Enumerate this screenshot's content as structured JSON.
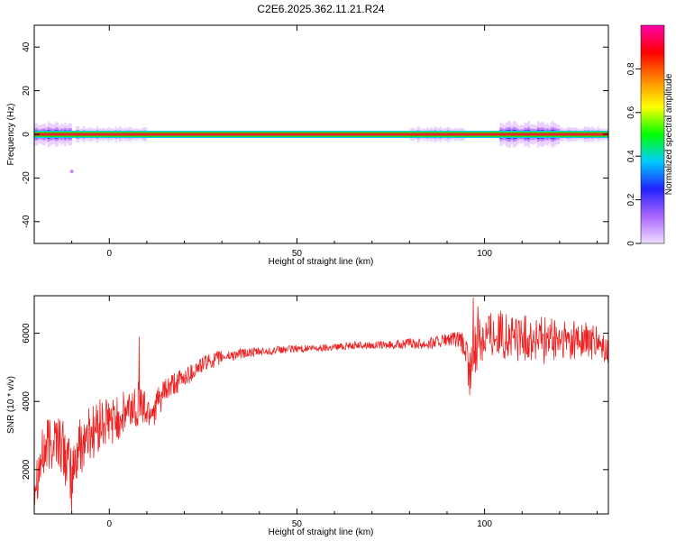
{
  "title": "C2E6.2025.362.11.21.R24",
  "colors": {
    "snr_line": "#ee2222",
    "spectrum_band_core": "#ee2222",
    "spectrum_band_green": "#22dd22",
    "spectrum_halo": "#cc88ff",
    "axes": "#000000"
  },
  "chart_data": [
    {
      "type": "heatmap",
      "xlabel": "Height of straight line (km)",
      "ylabel": "Frequency (Hz)",
      "xlim": [
        -20,
        133
      ],
      "ylim": [
        -50,
        50
      ],
      "xticks": [
        0,
        50,
        100
      ],
      "yticks": [
        -40,
        -20,
        0,
        20,
        40
      ],
      "ridge": {
        "frequency_hz": 0,
        "x_range": [
          -20,
          133
        ],
        "core_amplitude": 0.95
      },
      "spread_intervals": [
        {
          "x_range": [
            -20,
            -10
          ],
          "halfwidth_hz": 5
        },
        {
          "x_range": [
            -9,
            10
          ],
          "halfwidth_hz": 3
        },
        {
          "x_range": [
            80,
            95
          ],
          "halfwidth_hz": 3
        },
        {
          "x_range": [
            104,
            120
          ],
          "halfwidth_hz": 5
        },
        {
          "x_range": [
            120,
            133
          ],
          "halfwidth_hz": 3
        }
      ],
      "outliers": [
        {
          "x": -10,
          "frequency_hz": -17
        }
      ],
      "colorbar": {
        "label": "Normalized spectral amplitude",
        "range": [
          0,
          1
        ],
        "ticks": [
          0.0,
          0.2,
          0.4,
          0.6,
          0.8
        ],
        "colors": [
          "#eeddff",
          "#aa66ff",
          "#2222ff",
          "#00ccff",
          "#00ff00",
          "#ffff00",
          "#ff8800",
          "#ff0000",
          "#ff00aa"
        ]
      }
    },
    {
      "type": "line",
      "xlabel": "Height of straight line (km)",
      "ylabel": "SNR (10 * v/v)",
      "xlim": [
        -20,
        133
      ],
      "ylim": [
        700,
        7100
      ],
      "xticks": [
        0,
        50,
        100
      ],
      "yticks": [
        2000,
        4000,
        6000
      ],
      "series": [
        {
          "color": "#ee2222",
          "x": [
            -20,
            -17,
            -14,
            -12,
            -10,
            -8,
            -5,
            -2,
            0,
            2,
            4,
            6,
            8,
            10,
            12,
            15,
            20,
            25,
            30,
            35,
            40,
            45,
            50,
            55,
            60,
            65,
            70,
            75,
            80,
            85,
            90,
            93,
            95,
            96,
            97,
            98,
            100,
            103,
            106,
            110,
            115,
            120,
            125,
            130,
            133
          ],
          "y": [
            1700,
            2600,
            3000,
            2500,
            1800,
            2700,
            3100,
            3300,
            3400,
            3500,
            3600,
            3800,
            4000,
            3700,
            3800,
            4300,
            4700,
            5100,
            5300,
            5400,
            5450,
            5500,
            5550,
            5550,
            5600,
            5650,
            5650,
            5650,
            5700,
            5700,
            5800,
            5800,
            5500,
            4700,
            5400,
            5900,
            6000,
            6000,
            5900,
            5850,
            5800,
            5750,
            5800,
            5700,
            5400
          ],
          "noise_amplitude": [
            800,
            900,
            900,
            900,
            900,
            900,
            900,
            800,
            700,
            700,
            700,
            700,
            700,
            600,
            500,
            400,
            300,
            250,
            200,
            150,
            130,
            120,
            110,
            110,
            110,
            110,
            110,
            120,
            150,
            180,
            200,
            250,
            500,
            700,
            900,
            1000,
            800,
            700,
            700,
            700,
            700,
            650,
            600,
            500,
            400
          ],
          "spikes": [
            {
              "x": -10,
              "y": 750
            },
            {
              "x": 8,
              "y": 5900
            },
            {
              "x": 97,
              "y": 7050
            }
          ]
        }
      ]
    }
  ]
}
